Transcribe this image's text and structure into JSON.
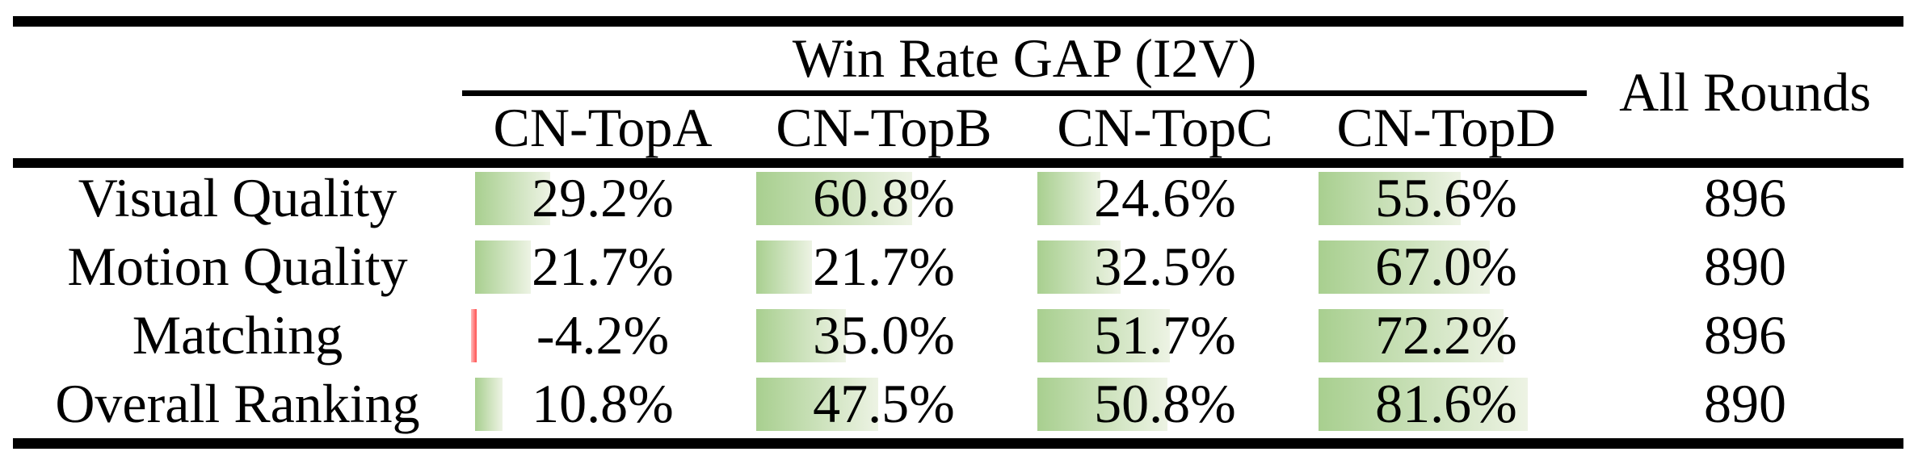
{
  "table": {
    "title": "Win Rate GAP (I2V)",
    "all_rounds_label": "All Rounds",
    "columns": [
      "CN-TopA",
      "CN-TopB",
      "CN-TopC",
      "CN-TopD"
    ],
    "rows": [
      {
        "label": "Visual Quality",
        "cells": [
          {
            "text": "29.2%",
            "value": 29.2
          },
          {
            "text": "60.8%",
            "value": 60.8
          },
          {
            "text": "24.6%",
            "value": 24.6
          },
          {
            "text": "55.6%",
            "value": 55.6
          }
        ],
        "all_rounds": "896"
      },
      {
        "label": "Motion Quality",
        "cells": [
          {
            "text": "21.7%",
            "value": 21.7
          },
          {
            "text": "21.7%",
            "value": 21.7
          },
          {
            "text": "32.5%",
            "value": 32.5
          },
          {
            "text": "67.0%",
            "value": 67.0
          }
        ],
        "all_rounds": "890"
      },
      {
        "label": "Matching",
        "cells": [
          {
            "text": "-4.2%",
            "value": -4.2
          },
          {
            "text": "35.0%",
            "value": 35.0
          },
          {
            "text": "51.7%",
            "value": 51.7
          },
          {
            "text": "72.2%",
            "value": 72.2
          }
        ],
        "all_rounds": "896"
      },
      {
        "label": "Overall Ranking",
        "cells": [
          {
            "text": "10.8%",
            "value": 10.8
          },
          {
            "text": "47.5%",
            "value": 47.5
          },
          {
            "text": "50.8%",
            "value": 50.8
          },
          {
            "text": "81.6%",
            "value": 81.6
          }
        ],
        "all_rounds": "890"
      }
    ],
    "colors": {
      "background": "#ffffff",
      "text": "#000000",
      "rule": "#000000",
      "bar_positive_left": "#a8cf8f",
      "bar_positive_right": "#edf3e4",
      "bar_negative_left": "#ffbdbd",
      "bar_negative_right": "#ff5050"
    }
  },
  "chart_data": {
    "type": "table",
    "title": "Win Rate GAP (I2V)",
    "row_header": [
      "Visual Quality",
      "Motion Quality",
      "Matching",
      "Overall Ranking"
    ],
    "column_header": [
      "CN-TopA",
      "CN-TopB",
      "CN-TopC",
      "CN-TopD",
      "All Rounds"
    ],
    "series": [
      {
        "name": "CN-TopA",
        "values": [
          29.2,
          21.7,
          -4.2,
          10.8
        ],
        "unit": "%"
      },
      {
        "name": "CN-TopB",
        "values": [
          60.8,
          21.7,
          35.0,
          47.5
        ],
        "unit": "%"
      },
      {
        "name": "CN-TopC",
        "values": [
          24.6,
          32.5,
          51.7,
          50.8
        ],
        "unit": "%"
      },
      {
        "name": "CN-TopD",
        "values": [
          55.6,
          67.0,
          72.2,
          81.6
        ],
        "unit": "%"
      },
      {
        "name": "All Rounds",
        "values": [
          896,
          890,
          896,
          890
        ],
        "unit": "rounds"
      }
    ],
    "layout_hints": {
      "data_bars": "horizontal green gradient bars behind percentage values, length proportional to value (scale ~100% = full column), negative values shown as thin red bar",
      "bar_range": [
        0,
        100
      ]
    }
  }
}
